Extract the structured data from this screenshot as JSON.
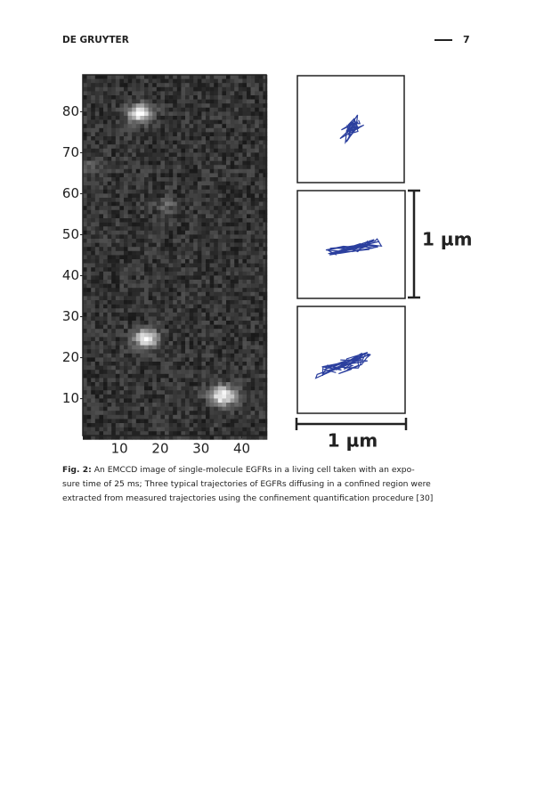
{
  "header": {
    "journal": "DE GRUYTER",
    "page": "7"
  },
  "figure": {
    "image": {
      "xlim": [
        1,
        46
      ],
      "ylim": [
        1,
        89
      ],
      "xticks": [
        10,
        20,
        30,
        40
      ],
      "yticks": [
        10,
        20,
        30,
        40,
        50,
        60,
        70,
        80
      ]
    },
    "scale_bars": {
      "vertical": "1 µm",
      "horizontal": "1 µm"
    }
  },
  "caption": {
    "label": "Fig. 2:",
    "lines": [
      "An EMCCD image of single-molecule EGFRs in a living cell taken with an expo-",
      "sure time of 25 ms; Three typical trajectories of EGFRs diffusing in a confined region were",
      "extracted from measured trajectories using the confinement quantification procedure [30]"
    ]
  }
}
